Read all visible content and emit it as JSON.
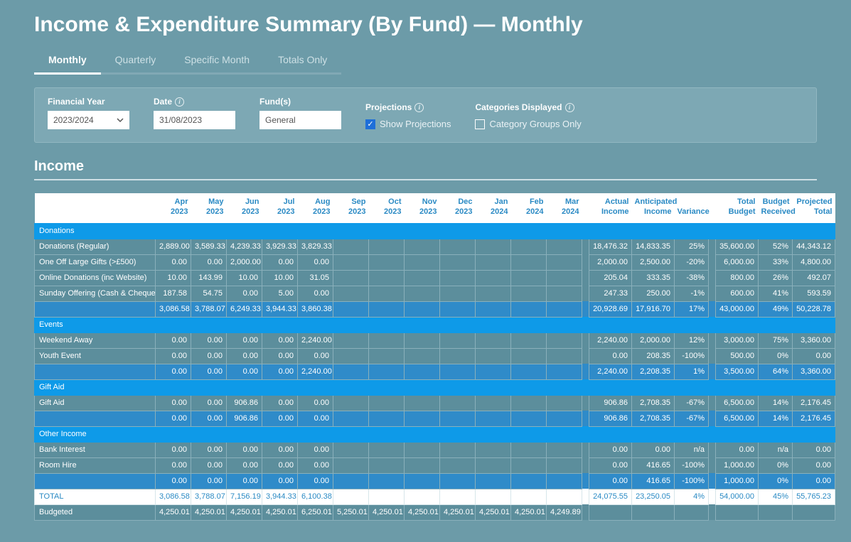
{
  "page": {
    "title": "Income & Expenditure Summary (By Fund) — Monthly"
  },
  "tabs": [
    {
      "label": "Monthly",
      "active": true
    },
    {
      "label": "Quarterly",
      "active": false
    },
    {
      "label": "Specific Month",
      "active": false
    },
    {
      "label": "Totals Only",
      "active": false
    }
  ],
  "filters": {
    "financialYear": {
      "label": "Financial Year",
      "value": "2023/2024"
    },
    "date": {
      "label": "Date",
      "value": "31/08/2023"
    },
    "funds": {
      "label": "Fund(s)",
      "value": "General"
    },
    "projections": {
      "label": "Projections",
      "checkbox_label": "Show Projections",
      "checked": true
    },
    "categories": {
      "label": "Categories Displayed",
      "checkbox_label": "Category Groups Only",
      "checked": false
    }
  },
  "section": {
    "title": "Income"
  },
  "columns": {
    "months": [
      {
        "l1": "Apr",
        "l2": "2023"
      },
      {
        "l1": "May",
        "l2": "2023"
      },
      {
        "l1": "Jun",
        "l2": "2023"
      },
      {
        "l1": "Jul",
        "l2": "2023"
      },
      {
        "l1": "Aug",
        "l2": "2023"
      },
      {
        "l1": "Sep",
        "l2": "2023"
      },
      {
        "l1": "Oct",
        "l2": "2023"
      },
      {
        "l1": "Nov",
        "l2": "2023"
      },
      {
        "l1": "Dec",
        "l2": "2023"
      },
      {
        "l1": "Jan",
        "l2": "2024"
      },
      {
        "l1": "Feb",
        "l2": "2024"
      },
      {
        "l1": "Mar",
        "l2": "2024"
      }
    ],
    "totals": [
      {
        "l1": "Actual",
        "l2": "Income"
      },
      {
        "l1": "Anticipated",
        "l2": "Income"
      },
      {
        "l1": "Variance",
        "l2": ""
      },
      {
        "l1": "Total",
        "l2": "Budget"
      },
      {
        "l1": "Budget",
        "l2": "Received"
      },
      {
        "l1": "Projected",
        "l2": "Total"
      }
    ]
  },
  "rows": [
    {
      "type": "group",
      "label": "Donations"
    },
    {
      "type": "data",
      "label": "Donations (Regular)",
      "months": [
        "2,889.00",
        "3,589.33",
        "4,239.33",
        "3,929.33",
        "3,829.33",
        "",
        "",
        "",
        "",
        "",
        "",
        ""
      ],
      "totals": [
        "18,476.32",
        "14,833.35",
        "25%",
        "35,600.00",
        "52%",
        "44,343.12"
      ]
    },
    {
      "type": "data",
      "label": "One Off Large Gifts (>£500)",
      "months": [
        "0.00",
        "0.00",
        "2,000.00",
        "0.00",
        "0.00",
        "",
        "",
        "",
        "",
        "",
        "",
        ""
      ],
      "totals": [
        "2,000.00",
        "2,500.00",
        "-20%",
        "6,000.00",
        "33%",
        "4,800.00"
      ]
    },
    {
      "type": "data",
      "label": "Online Donations (inc Website)",
      "months": [
        "10.00",
        "143.99",
        "10.00",
        "10.00",
        "31.05",
        "",
        "",
        "",
        "",
        "",
        "",
        ""
      ],
      "totals": [
        "205.04",
        "333.35",
        "-38%",
        "800.00",
        "26%",
        "492.07"
      ]
    },
    {
      "type": "data",
      "label": "Sunday Offering (Cash & Cheques)",
      "months": [
        "187.58",
        "54.75",
        "0.00",
        "5.00",
        "0.00",
        "",
        "",
        "",
        "",
        "",
        "",
        ""
      ],
      "totals": [
        "247.33",
        "250.00",
        "-1%",
        "600.00",
        "41%",
        "593.59"
      ]
    },
    {
      "type": "subtotal",
      "label": "",
      "months": [
        "3,086.58",
        "3,788.07",
        "6,249.33",
        "3,944.33",
        "3,860.38",
        "",
        "",
        "",
        "",
        "",
        "",
        ""
      ],
      "totals": [
        "20,928.69",
        "17,916.70",
        "17%",
        "43,000.00",
        "49%",
        "50,228.78"
      ]
    },
    {
      "type": "group",
      "label": "Events"
    },
    {
      "type": "data",
      "label": "Weekend Away",
      "months": [
        "0.00",
        "0.00",
        "0.00",
        "0.00",
        "2,240.00",
        "",
        "",
        "",
        "",
        "",
        "",
        ""
      ],
      "totals": [
        "2,240.00",
        "2,000.00",
        "12%",
        "3,000.00",
        "75%",
        "3,360.00"
      ]
    },
    {
      "type": "data",
      "label": "Youth Event",
      "months": [
        "0.00",
        "0.00",
        "0.00",
        "0.00",
        "0.00",
        "",
        "",
        "",
        "",
        "",
        "",
        ""
      ],
      "totals": [
        "0.00",
        "208.35",
        "-100%",
        "500.00",
        "0%",
        "0.00"
      ]
    },
    {
      "type": "subtotal",
      "label": "",
      "months": [
        "0.00",
        "0.00",
        "0.00",
        "0.00",
        "2,240.00",
        "",
        "",
        "",
        "",
        "",
        "",
        ""
      ],
      "totals": [
        "2,240.00",
        "2,208.35",
        "1%",
        "3,500.00",
        "64%",
        "3,360.00"
      ]
    },
    {
      "type": "group",
      "label": "Gift Aid"
    },
    {
      "type": "data",
      "label": "Gift Aid",
      "months": [
        "0.00",
        "0.00",
        "906.86",
        "0.00",
        "0.00",
        "",
        "",
        "",
        "",
        "",
        "",
        ""
      ],
      "totals": [
        "906.86",
        "2,708.35",
        "-67%",
        "6,500.00",
        "14%",
        "2,176.45"
      ]
    },
    {
      "type": "subtotal",
      "label": "",
      "months": [
        "0.00",
        "0.00",
        "906.86",
        "0.00",
        "0.00",
        "",
        "",
        "",
        "",
        "",
        "",
        ""
      ],
      "totals": [
        "906.86",
        "2,708.35",
        "-67%",
        "6,500.00",
        "14%",
        "2,176.45"
      ]
    },
    {
      "type": "group",
      "label": "Other Income"
    },
    {
      "type": "data",
      "label": "Bank Interest",
      "months": [
        "0.00",
        "0.00",
        "0.00",
        "0.00",
        "0.00",
        "",
        "",
        "",
        "",
        "",
        "",
        ""
      ],
      "totals": [
        "0.00",
        "0.00",
        "n/a",
        "0.00",
        "n/a",
        "0.00"
      ]
    },
    {
      "type": "data",
      "label": "Room Hire",
      "months": [
        "0.00",
        "0.00",
        "0.00",
        "0.00",
        "0.00",
        "",
        "",
        "",
        "",
        "",
        "",
        ""
      ],
      "totals": [
        "0.00",
        "416.65",
        "-100%",
        "1,000.00",
        "0%",
        "0.00"
      ]
    },
    {
      "type": "subtotal",
      "label": "",
      "months": [
        "0.00",
        "0.00",
        "0.00",
        "0.00",
        "0.00",
        "",
        "",
        "",
        "",
        "",
        "",
        ""
      ],
      "totals": [
        "0.00",
        "416.65",
        "-100%",
        "1,000.00",
        "0%",
        "0.00"
      ]
    },
    {
      "type": "total",
      "label": "TOTAL",
      "months": [
        "3,086.58",
        "3,788.07",
        "7,156.19",
        "3,944.33",
        "6,100.38",
        "",
        "",
        "",
        "",
        "",
        "",
        ""
      ],
      "totals": [
        "24,075.55",
        "23,250.05",
        "4%",
        "54,000.00",
        "45%",
        "55,765.23"
      ]
    },
    {
      "type": "budgeted",
      "label": "Budgeted",
      "months": [
        "4,250.01",
        "4,250.01",
        "4,250.01",
        "4,250.01",
        "6,250.01",
        "5,250.01",
        "4,250.01",
        "4,250.01",
        "4,250.01",
        "4,250.01",
        "4,250.01",
        "4,249.89"
      ],
      "totals": [
        "",
        "",
        "",
        "",
        "",
        ""
      ]
    }
  ]
}
